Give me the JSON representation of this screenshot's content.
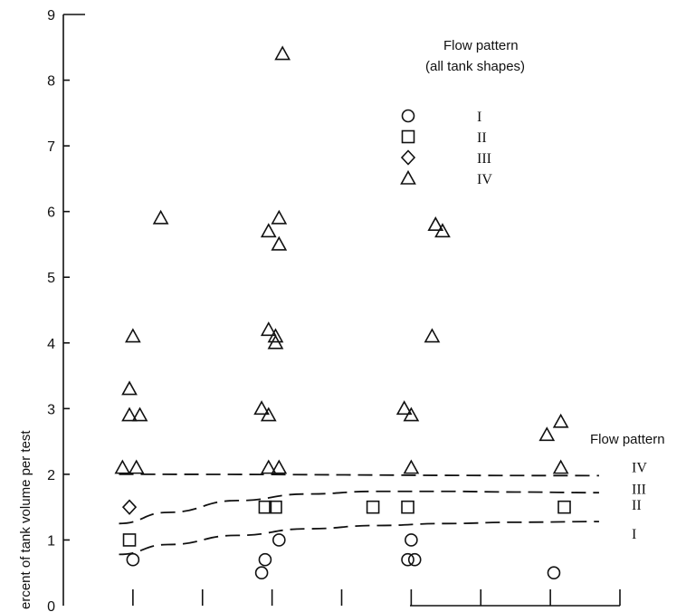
{
  "chart_data": {
    "type": "scatter",
    "title": "",
    "xlabel": "",
    "ylabel": "Percent of tank volume per test",
    "ylabel_visible": "ercent of tank volume per test",
    "ylim": [
      0,
      9
    ],
    "yticks": [
      "0",
      "1",
      "2",
      "3",
      "4",
      "5",
      "6",
      "7",
      "8",
      "9"
    ],
    "grid": false,
    "legend": {
      "title_line1": "Flow pattern",
      "title_line2": "(all tank shapes)",
      "placement": "top-right",
      "entries": [
        {
          "marker": "circle",
          "label": "I"
        },
        {
          "marker": "square",
          "label": "II"
        },
        {
          "marker": "diamond",
          "label": "III"
        },
        {
          "marker": "triangle",
          "label": "IV"
        }
      ]
    },
    "boundary_title": "Flow pattern",
    "boundaries": [
      {
        "label": "IV",
        "points": [
          [
            0.8,
            2.0
          ],
          [
            7.7,
            1.98
          ]
        ]
      },
      {
        "label": "III",
        "points": [
          [
            0.8,
            1.25
          ],
          [
            1.5,
            1.42
          ],
          [
            2.5,
            1.6
          ],
          [
            3.5,
            1.7
          ],
          [
            4.5,
            1.74
          ],
          [
            5.5,
            1.74
          ],
          [
            6.5,
            1.73
          ],
          [
            7.7,
            1.72
          ]
        ]
      },
      {
        "label": "II",
        "points": [
          [
            0.8,
            0.78
          ],
          [
            1.5,
            0.93
          ],
          [
            2.5,
            1.07
          ],
          [
            3.5,
            1.17
          ],
          [
            4.5,
            1.22
          ],
          [
            5.5,
            1.25
          ],
          [
            6.5,
            1.27
          ],
          [
            7.7,
            1.28
          ]
        ]
      }
    ],
    "x_tick_marks": [
      1,
      2,
      3,
      4,
      5,
      6,
      7,
      8
    ],
    "series": [
      {
        "marker": "circle",
        "points": [
          [
            1,
            0.7
          ],
          [
            2.85,
            0.5
          ],
          [
            2.9,
            0.7
          ],
          [
            3.1,
            1.0
          ],
          [
            4.95,
            0.7
          ],
          [
            5.05,
            0.7
          ],
          [
            5.0,
            1.0
          ],
          [
            7.05,
            0.5
          ]
        ]
      },
      {
        "marker": "square",
        "points": [
          [
            0.95,
            1.0
          ],
          [
            2.9,
            1.5
          ],
          [
            3.05,
            1.5
          ],
          [
            4.45,
            1.5
          ],
          [
            4.95,
            1.5
          ],
          [
            7.2,
            1.5
          ]
        ]
      },
      {
        "marker": "diamond",
        "points": [
          [
            0.95,
            1.5
          ]
        ]
      },
      {
        "marker": "triangle",
        "points": [
          [
            1.4,
            5.9
          ],
          [
            1.0,
            4.1
          ],
          [
            0.95,
            3.3
          ],
          [
            0.95,
            2.9
          ],
          [
            1.1,
            2.9
          ],
          [
            0.85,
            2.1
          ],
          [
            1.05,
            2.1
          ],
          [
            3.15,
            8.4
          ],
          [
            3.1,
            5.9
          ],
          [
            2.95,
            5.7
          ],
          [
            3.1,
            5.5
          ],
          [
            2.95,
            4.2
          ],
          [
            3.05,
            4.1
          ],
          [
            3.05,
            4.0
          ],
          [
            2.85,
            3.0
          ],
          [
            2.95,
            2.9
          ],
          [
            2.95,
            2.1
          ],
          [
            3.1,
            2.1
          ],
          [
            5.35,
            5.8
          ],
          [
            5.45,
            5.7
          ],
          [
            5.3,
            4.1
          ],
          [
            4.9,
            3.0
          ],
          [
            5.0,
            2.9
          ],
          [
            5.0,
            2.1
          ],
          [
            6.95,
            2.6
          ],
          [
            7.15,
            2.8
          ],
          [
            7.15,
            2.1
          ]
        ]
      }
    ]
  }
}
